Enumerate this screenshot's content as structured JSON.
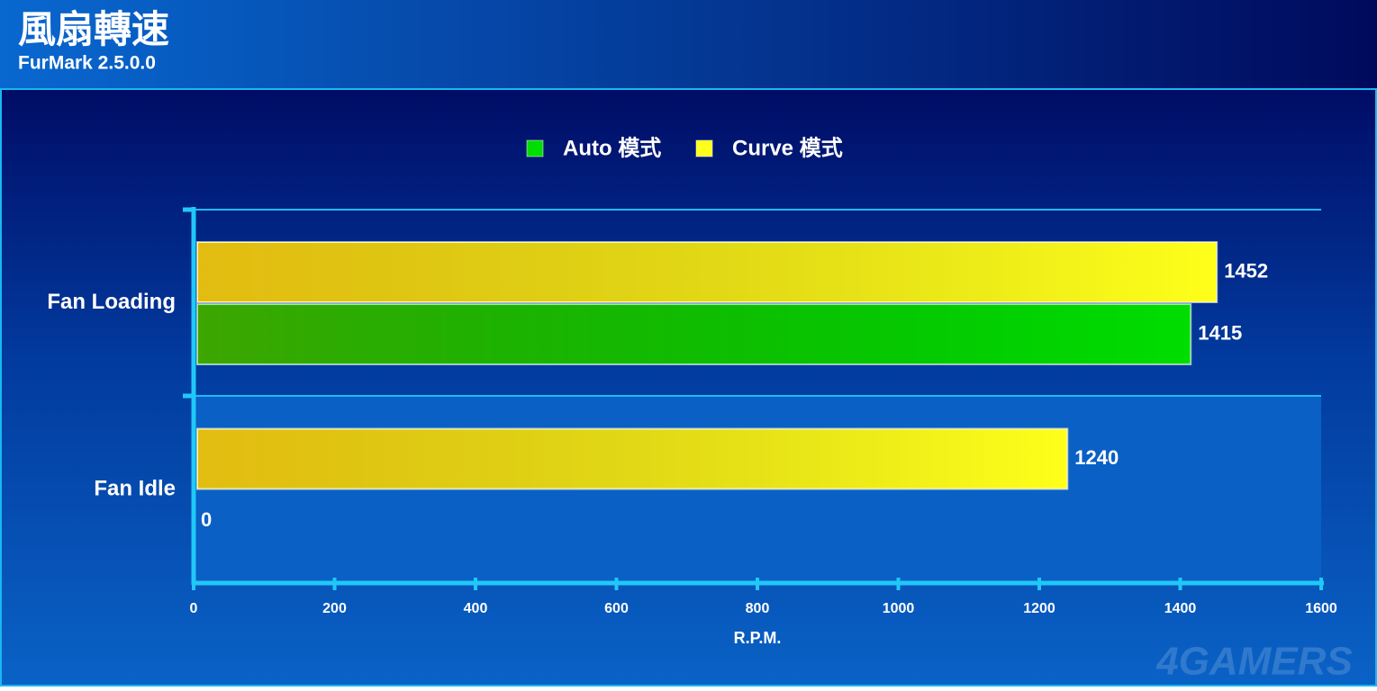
{
  "chart_data": {
    "type": "hbar",
    "title": "風扇轉速",
    "subtitle": "FurMark 2.5.0.0",
    "x_label": "R.P.M.",
    "watermark": "4GAMERS",
    "categories": [
      "Fan Loading",
      "Fan Idle"
    ],
    "series": [
      {
        "name": "Curve 模式",
        "color": "#ffff1a",
        "values": [
          1452,
          1240
        ]
      },
      {
        "name": "Auto 模式",
        "color": "#00dd00",
        "values": [
          1415,
          0
        ]
      }
    ],
    "legend_order": [
      1,
      0
    ],
    "xlim": [
      0,
      1600
    ],
    "xticks": [
      0,
      200,
      400,
      600,
      800,
      1000,
      1200,
      1400,
      1600
    ]
  }
}
